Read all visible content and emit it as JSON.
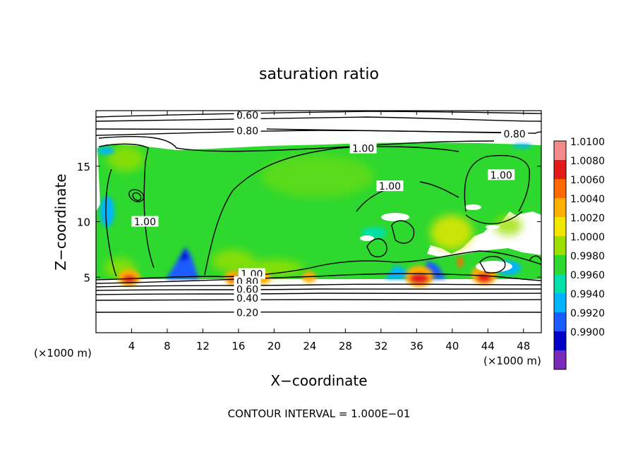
{
  "chart_data": {
    "type": "heatmap",
    "title": "saturation ratio",
    "xlabel": "X−coordinate",
    "ylabel": "Z−coordinate",
    "x_units_left": "(×1000 m)",
    "x_units_right": "(×1000 m)",
    "footnote": "CONTOUR INTERVAL = 1.000E−01",
    "xlim": [
      0,
      50
    ],
    "ylim": [
      0,
      20
    ],
    "x_ticks": [
      {
        "value": 4,
        "label": "4"
      },
      {
        "value": 8,
        "label": "8"
      },
      {
        "value": 12,
        "label": "12"
      },
      {
        "value": 16,
        "label": "16"
      },
      {
        "value": 20,
        "label": "20"
      },
      {
        "value": 24,
        "label": "24"
      },
      {
        "value": 28,
        "label": "28"
      },
      {
        "value": 32,
        "label": "32"
      },
      {
        "value": 36,
        "label": "36"
      },
      {
        "value": 40,
        "label": "40"
      },
      {
        "value": 44,
        "label": "44"
      },
      {
        "value": 48,
        "label": "48"
      }
    ],
    "y_ticks": [
      {
        "value": 5,
        "label": "5"
      },
      {
        "value": 10,
        "label": "10"
      },
      {
        "value": 15,
        "label": "15"
      }
    ],
    "colorbar": [
      {
        "label": "1.0100",
        "color": "#f28c8c"
      },
      {
        "label": "1.0080",
        "color": "#e31a1a"
      },
      {
        "label": "1.0060",
        "color": "#ff6a00"
      },
      {
        "label": "1.0040",
        "color": "#ffb000"
      },
      {
        "label": "1.0020",
        "color": "#f2e600"
      },
      {
        "label": "1.0000",
        "color": "#9be000"
      },
      {
        "label": "0.9980",
        "color": "#2ed82e"
      },
      {
        "label": "0.9960",
        "color": "#00e0a8"
      },
      {
        "label": "0.9940",
        "color": "#00b4ff"
      },
      {
        "label": "0.9920",
        "color": "#1a5cff"
      },
      {
        "label": "0.9900",
        "color": "#0000c8"
      },
      {
        "label": "",
        "color": "#7a2ab8"
      }
    ],
    "contour_labels": [
      {
        "text": "0.60",
        "x": 17.0,
        "z": 19.6
      },
      {
        "text": "0.80",
        "x": 17.0,
        "z": 18.2
      },
      {
        "text": "0.80",
        "x": 47.0,
        "z": 17.9
      },
      {
        "text": "1.00",
        "x": 30.0,
        "z": 16.6
      },
      {
        "text": "1.00",
        "x": 33.0,
        "z": 13.2
      },
      {
        "text": "1.00",
        "x": 45.5,
        "z": 14.2
      },
      {
        "text": "1.00",
        "x": 5.5,
        "z": 10.0
      },
      {
        "text": "1.00",
        "x": 17.5,
        "z": 5.3
      },
      {
        "text": "0.80",
        "x": 17.0,
        "z": 4.6
      },
      {
        "text": "0.60",
        "x": 17.0,
        "z": 3.9
      },
      {
        "text": "0.40",
        "x": 17.0,
        "z": 3.1
      },
      {
        "text": "0.20",
        "x": 17.0,
        "z": 1.8
      }
    ]
  }
}
